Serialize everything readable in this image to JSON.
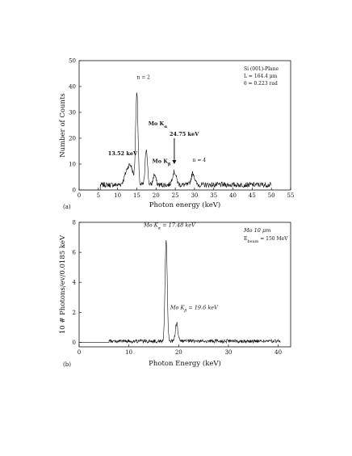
{
  "chart_data": [
    {
      "type": "line",
      "panel_label": "(a)",
      "xlabel": "Photon energy (keV)",
      "ylabel": "Number of Counts",
      "xlim": [
        0,
        55
      ],
      "ylim": [
        0,
        50
      ],
      "xticks": [
        0,
        5,
        10,
        15,
        20,
        25,
        30,
        35,
        40,
        45,
        50,
        55
      ],
      "yticks": [
        0,
        10,
        20,
        30,
        40,
        50
      ],
      "grid": false,
      "info_lines": [
        "Si (001)-Plane",
        "L = 164.4 μm",
        "θ = 0.223 rad"
      ],
      "annotations": [
        {
          "id": "n2",
          "text": "n = 2",
          "x": 15.0,
          "y": 43,
          "style": "plain"
        },
        {
          "id": "moka",
          "text": "Mo K",
          "sub": "α",
          "x": 18.0,
          "y": 25,
          "style": "bold"
        },
        {
          "id": "e1352",
          "text": "13.52 keV",
          "x": 7.5,
          "y": 13.5,
          "style": "bold"
        },
        {
          "id": "mokb",
          "text": "Mo K",
          "sub": "β",
          "x": 19.0,
          "y": 10.5,
          "style": "bold"
        },
        {
          "id": "e2475",
          "text": "24.75 keV",
          "x": 23.5,
          "y": 21,
          "style": "bold"
        },
        {
          "id": "n4",
          "text": "n = 4",
          "x": 29.5,
          "y": 11,
          "style": "plain"
        }
      ],
      "arrow": {
        "x": 24.75,
        "y_start": 20,
        "y_end": 10
      },
      "peaks": [
        {
          "center": 12.5,
          "height": 5,
          "width": 0.7
        },
        {
          "center": 13.52,
          "height": 5.5,
          "width": 0.6
        },
        {
          "center": 15.0,
          "height": 36,
          "width": 0.3
        },
        {
          "center": 17.48,
          "height": 14,
          "width": 0.3
        },
        {
          "center": 19.6,
          "height": 4,
          "width": 0.35
        },
        {
          "center": 24.75,
          "height": 5,
          "width": 0.5
        },
        {
          "center": 29.6,
          "height": 4.5,
          "width": 0.45
        }
      ],
      "background_range": [
        5.5,
        50
      ],
      "background_level": 2,
      "noise_amplitude": 1.0
    },
    {
      "type": "line",
      "panel_label": "(b)",
      "xlabel": "Photon Energy (keV)",
      "ylabel": "10  # Photons/ev/0.0185 keV",
      "xlim": [
        0,
        42.5
      ],
      "ylim": [
        -0.3,
        8
      ],
      "xticks": [
        0,
        10,
        20,
        30,
        40
      ],
      "yticks": [
        0,
        2,
        4,
        6,
        8
      ],
      "grid": false,
      "info_lines": [
        "Mo 10 μm"
      ],
      "ebeam": {
        "prefix": "E",
        "sub": "beam",
        "suffix": " = 150 MeV"
      },
      "annotations": [
        {
          "id": "mokalpha",
          "text": "Mo K",
          "sub": "α",
          "suffix": " = 17.48 keV",
          "x": 13.0,
          "y": 7.7,
          "style": "italic"
        },
        {
          "id": "mokbeta",
          "text": "Mo K",
          "sub": "β",
          "suffix": " = 19.6 keV",
          "x": 18.3,
          "y": 2.2,
          "style": "italic"
        }
      ],
      "peaks": [
        {
          "center": 17.48,
          "height": 6.7,
          "width": 0.22
        },
        {
          "center": 19.6,
          "height": 1.2,
          "width": 0.25
        }
      ],
      "background_range": [
        6,
        40.5
      ],
      "background_level": 0.08,
      "noise_amplitude": 0.12
    }
  ]
}
